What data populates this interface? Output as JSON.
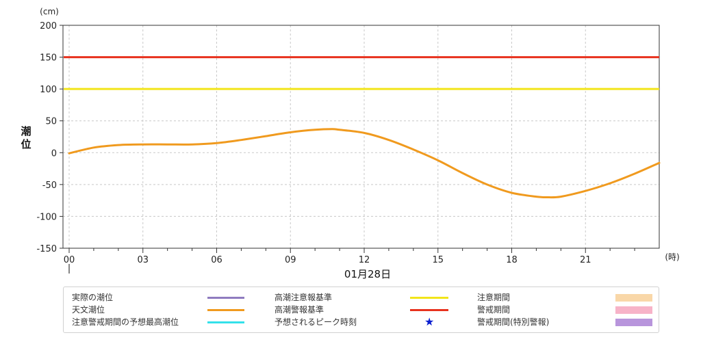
{
  "chart_data": {
    "type": "line",
    "ylabel": "潮位",
    "y_unit": "(cm)",
    "x_unit": "(時)",
    "date_label": "01月28日",
    "ylim": [
      -150,
      200
    ],
    "xlim": [
      0,
      24
    ],
    "yticks": [
      200,
      150,
      100,
      50,
      0,
      -50,
      -100,
      -150
    ],
    "xticks": [
      {
        "h": 0,
        "label": "00"
      },
      {
        "h": 3,
        "label": "03"
      },
      {
        "h": 6,
        "label": "06"
      },
      {
        "h": 9,
        "label": "09"
      },
      {
        "h": 12,
        "label": "12"
      },
      {
        "h": 15,
        "label": "15"
      },
      {
        "h": 18,
        "label": "18"
      },
      {
        "h": 21,
        "label": "21"
      }
    ],
    "grid": true,
    "thresholds": [
      {
        "name": "高潮警報基準",
        "value": 150,
        "color": "#e8321e"
      },
      {
        "name": "高潮注意報基準",
        "value": 100,
        "color": "#f2e51a"
      }
    ],
    "series": [
      {
        "name": "天文潮位",
        "color": "#f09a1e",
        "x": [
          0,
          1,
          2,
          3,
          4,
          5,
          6,
          7,
          8,
          9,
          10,
          10.7,
          11,
          12,
          13,
          14,
          15,
          16,
          17,
          18,
          19,
          19.4,
          20,
          21,
          22,
          23,
          24
        ],
        "y": [
          -1,
          8,
          12,
          13,
          13,
          13,
          15,
          20,
          26,
          32,
          36,
          37,
          36,
          31,
          20,
          5,
          -12,
          -32,
          -50,
          -63,
          -69,
          -70,
          -69,
          -60,
          -48,
          -33,
          -16
        ]
      }
    ]
  },
  "legend": [
    [
      {
        "label": "実際の潮位",
        "kind": "line",
        "color": "#8f7bbf"
      },
      {
        "label": "高潮注意報基準",
        "kind": "line",
        "color": "#f2e51a"
      },
      {
        "label": "注意期間",
        "kind": "patch",
        "color": "#f9d7a8"
      }
    ],
    [
      {
        "label": "天文潮位",
        "kind": "line",
        "color": "#f09a1e"
      },
      {
        "label": "高潮警報基準",
        "kind": "line",
        "color": "#e8321e"
      },
      {
        "label": "警戒期間",
        "kind": "patch",
        "color": "#f7b3c8"
      }
    ],
    [
      {
        "label": "注意警戒期間の予想最高潮位",
        "kind": "line",
        "color": "#33e1ea"
      },
      {
        "label": "予想されるピーク時刻",
        "kind": "star",
        "color": "#0a1ed0"
      },
      {
        "label": "警戒期間(特別警報)",
        "kind": "patch",
        "color": "#b895dc"
      }
    ]
  ]
}
